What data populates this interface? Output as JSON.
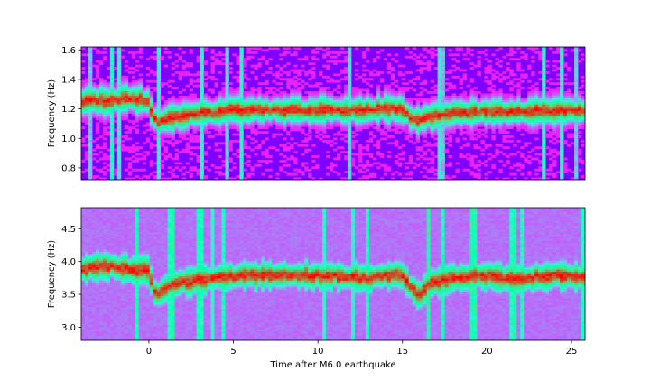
{
  "chart_data": [
    {
      "type": "heatmap",
      "title": "",
      "xlabel": "",
      "ylabel": "Frequency (Hz)",
      "xlim": [
        -4,
        25.8
      ],
      "ylim": [
        0.72,
        1.62
      ],
      "xticks": [],
      "yticks": [
        {
          "value": 0.8,
          "label": "0.8"
        },
        {
          "value": 1.0,
          "label": "1.0"
        },
        {
          "value": 1.2,
          "label": "1.2"
        },
        {
          "value": 1.4,
          "label": "1.4"
        },
        {
          "value": 1.6,
          "label": "1.6"
        }
      ],
      "colormap": "rainbow",
      "background_color": "#8000ff",
      "peak_color": "#ff0000",
      "ridge": {
        "x": [
          -4,
          -2,
          -1,
          0,
          0.2,
          0.5,
          1,
          2,
          3,
          4,
          5,
          6,
          8,
          10,
          12,
          14,
          15,
          15.5,
          16,
          17,
          18,
          20,
          22,
          24,
          25.8
        ],
        "y": [
          1.25,
          1.26,
          1.27,
          1.25,
          1.16,
          1.1,
          1.13,
          1.15,
          1.17,
          1.18,
          1.2,
          1.19,
          1.19,
          1.19,
          1.19,
          1.2,
          1.2,
          1.14,
          1.12,
          1.16,
          1.17,
          1.18,
          1.18,
          1.19,
          1.18
        ]
      }
    },
    {
      "type": "heatmap",
      "title": "",
      "xlabel": "Time after M6.0 earthquake",
      "ylabel": "Frequency (Hz)",
      "xlim": [
        -4,
        25.8
      ],
      "ylim": [
        2.8,
        4.82
      ],
      "xticks": [
        {
          "value": 0,
          "label": "0"
        },
        {
          "value": 5,
          "label": "5"
        },
        {
          "value": 10,
          "label": "10"
        },
        {
          "value": 15,
          "label": "15"
        },
        {
          "value": 20,
          "label": "20"
        },
        {
          "value": 25,
          "label": "25"
        }
      ],
      "yticks": [
        {
          "value": 3.0,
          "label": "3.0"
        },
        {
          "value": 3.5,
          "label": "3.5"
        },
        {
          "value": 4.0,
          "label": "4.0"
        },
        {
          "value": 4.5,
          "label": "4.5"
        }
      ],
      "colormap": "rainbow",
      "background_color": "#6a4af5",
      "peak_color": "#ff0000",
      "ridge": {
        "x": [
          -4,
          -2,
          -1,
          0,
          0.3,
          0.6,
          1,
          2,
          3,
          4,
          5,
          7,
          9,
          11,
          12,
          13,
          14,
          15,
          15.6,
          16,
          16.5,
          18,
          20,
          22,
          24,
          25.8
        ],
        "y": [
          3.9,
          3.92,
          3.88,
          3.86,
          3.55,
          3.52,
          3.6,
          3.68,
          3.72,
          3.74,
          3.78,
          3.8,
          3.78,
          3.78,
          3.76,
          3.74,
          3.78,
          3.8,
          3.58,
          3.44,
          3.66,
          3.76,
          3.78,
          3.72,
          3.8,
          3.74
        ]
      }
    }
  ]
}
